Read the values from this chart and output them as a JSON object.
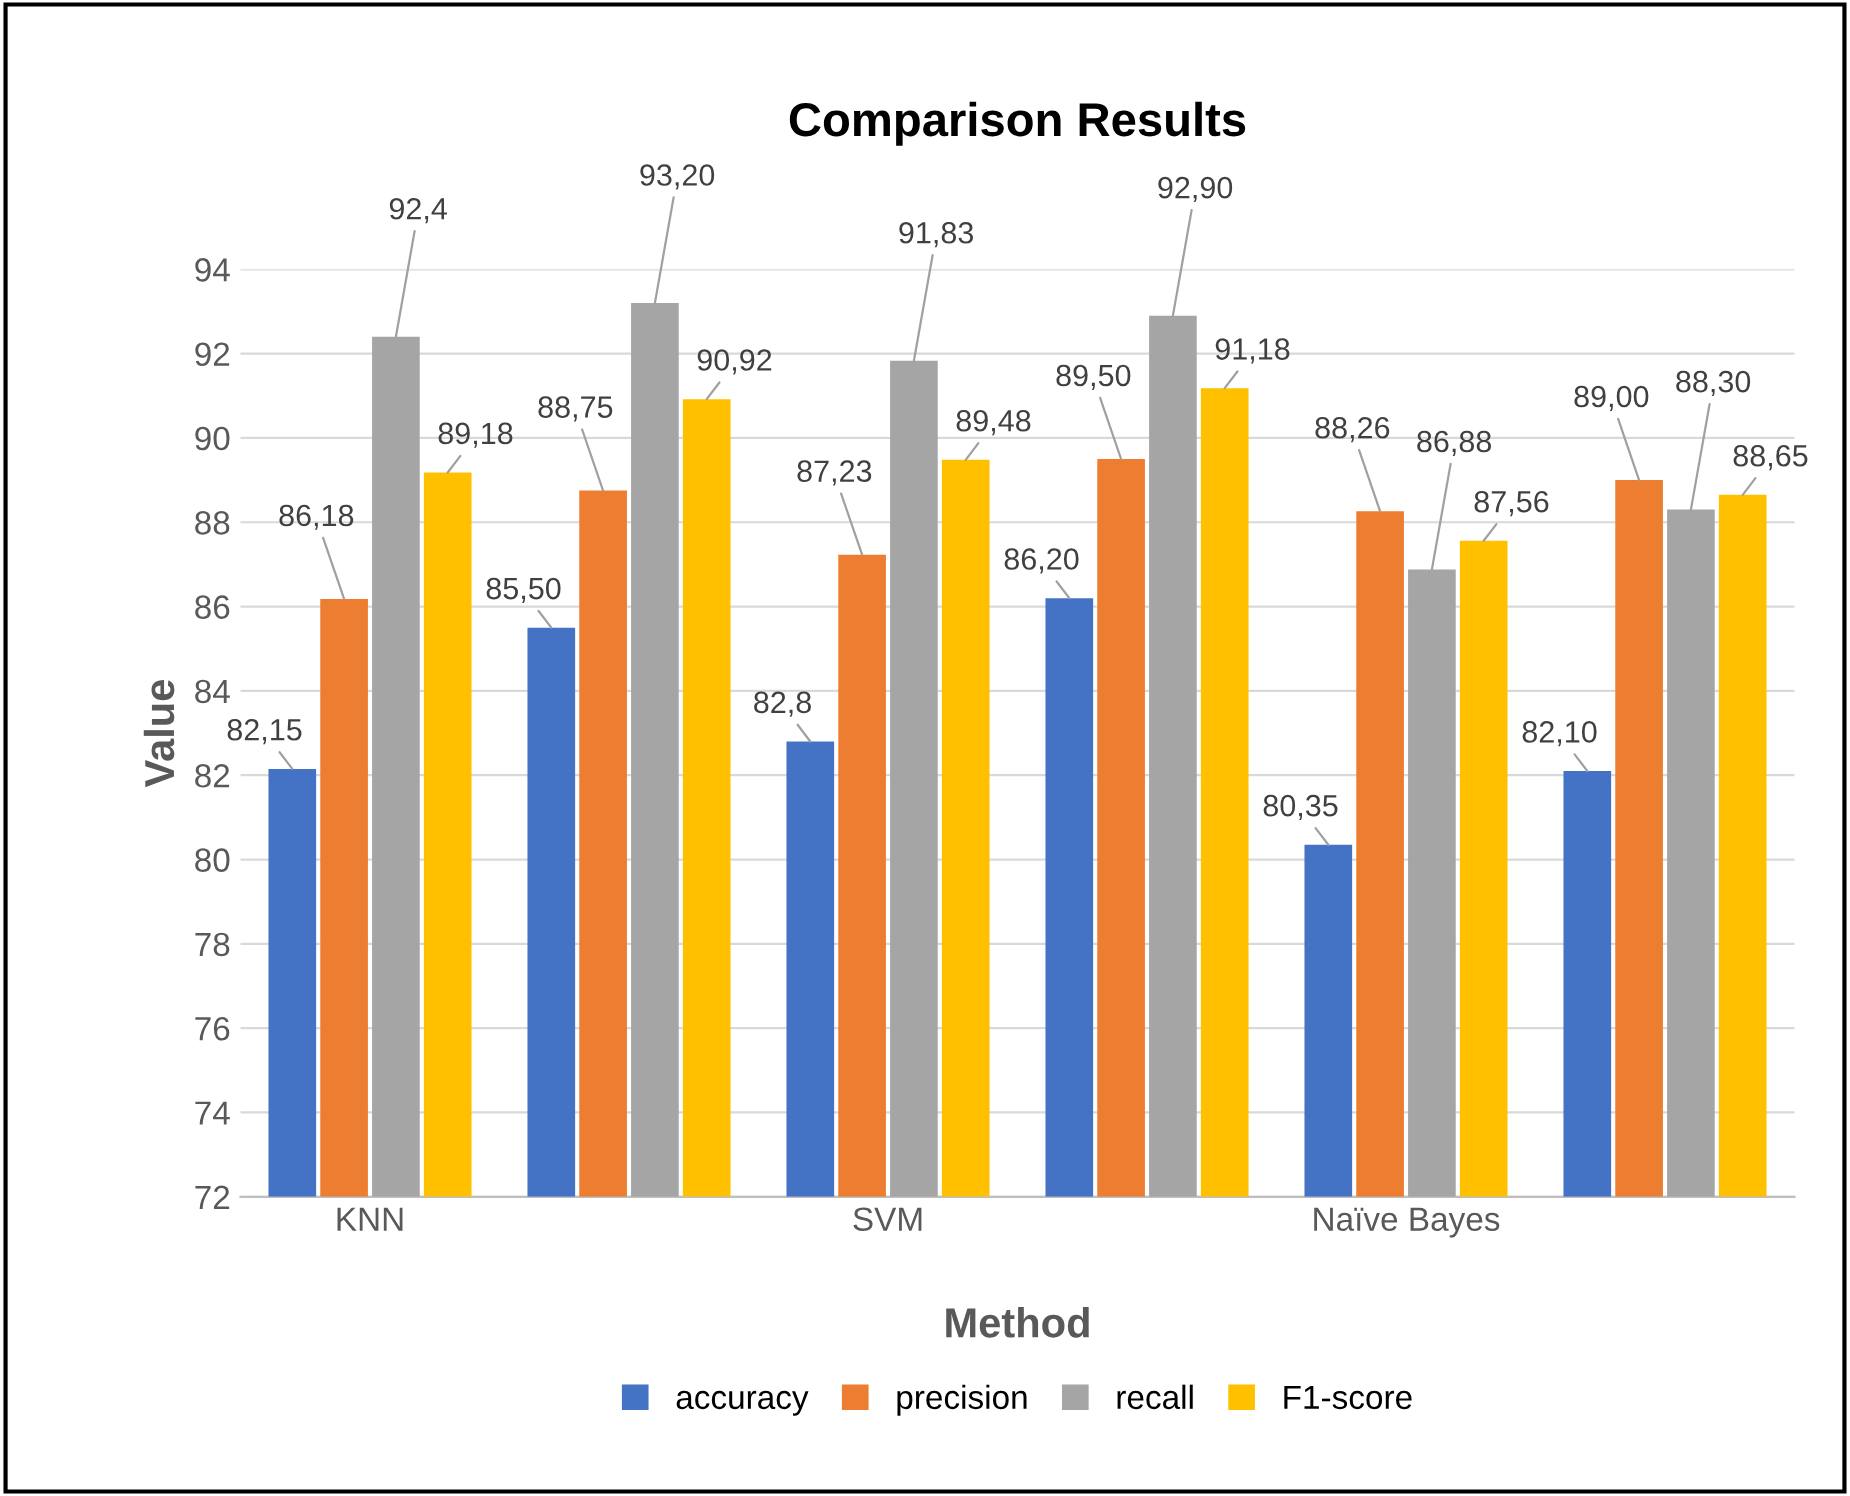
{
  "chart_data": {
    "type": "bar",
    "title": "Comparison Results",
    "xlabel": "Method",
    "ylabel": "Value",
    "categories": [
      "KNN",
      null,
      "SVM",
      null,
      "Naïve Bayes",
      null
    ],
    "series": [
      {
        "name": "accuracy",
        "color": "#4472c4",
        "values": [
          82.15,
          85.5,
          82.8,
          86.2,
          80.35,
          82.1
        ],
        "value_labels": [
          "82,15",
          "85,50",
          "82,8",
          "86,20",
          "80,35",
          "82,10"
        ]
      },
      {
        "name": "precision",
        "color": "#ed7d31",
        "values": [
          86.18,
          88.75,
          87.23,
          89.5,
          88.26,
          89.0
        ],
        "value_labels": [
          "86,18",
          "88,75",
          "87,23",
          "89,50",
          "88,26",
          "89,00"
        ]
      },
      {
        "name": "recall",
        "color": "#a5a5a5",
        "values": [
          92.4,
          93.2,
          91.83,
          92.9,
          86.88,
          88.3
        ],
        "value_labels": [
          "92,4",
          "93,20",
          "91,83",
          "92,90",
          "86,88",
          "88,30"
        ]
      },
      {
        "name": "F1-score",
        "color": "#ffc000",
        "values": [
          89.18,
          90.92,
          89.48,
          91.18,
          87.56,
          88.65
        ],
        "value_labels": [
          "89,18",
          "90,92",
          "89,48",
          "91,18",
          "87,56",
          "88,65"
        ]
      }
    ],
    "ylim": [
      72,
      94
    ],
    "yticks": [
      72,
      74,
      76,
      78,
      80,
      82,
      84,
      86,
      88,
      90,
      92,
      94
    ],
    "grid": "y",
    "legend": "bottom"
  }
}
